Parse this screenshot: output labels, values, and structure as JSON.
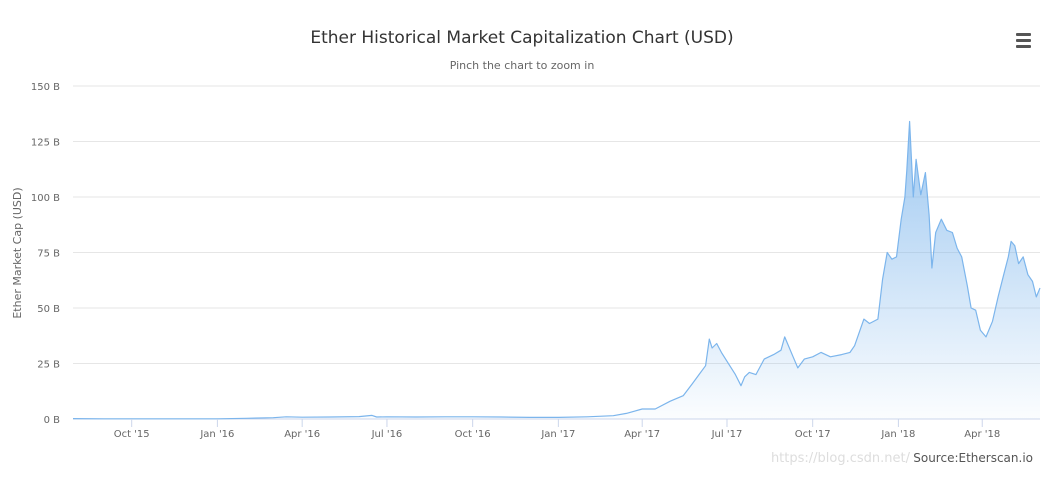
{
  "chart_data": {
    "type": "area",
    "title": "Ether Historical Market Capitalization Chart (USD)",
    "subtitle": "Pinch the chart to zoom in",
    "ylabel": "Ether Market Cap (USD)",
    "xlabel": "",
    "credits": "Source:Etherscan.io",
    "watermark": "https://blog.csdn.net/",
    "ylim": [
      0,
      150
    ],
    "yticks": [
      0,
      25,
      50,
      75,
      100,
      125,
      150
    ],
    "ytick_labels": [
      "0 B",
      "25 B",
      "50 B",
      "75 B",
      "100 B",
      "125 B",
      "150 B"
    ],
    "xlim": [
      "2015-07-30",
      "2018-06-02"
    ],
    "xtick_dates": [
      "2015-10-01",
      "2016-01-01",
      "2016-04-01",
      "2016-07-01",
      "2016-10-01",
      "2017-01-01",
      "2017-04-01",
      "2017-07-01",
      "2017-10-01",
      "2018-01-01",
      "2018-04-01"
    ],
    "xtick_labels": [
      "Oct '15",
      "Jan '16",
      "Apr '16",
      "Jul '16",
      "Oct '16",
      "Jan '17",
      "Apr '17",
      "Jul '17",
      "Oct '17",
      "Jan '18",
      "Apr '18"
    ],
    "grid": true,
    "line_color": "#7cb5ec",
    "series": [
      {
        "x": [
          "2015-07-30",
          "2015-09-01",
          "2015-10-15",
          "2015-12-01",
          "2016-01-01",
          "2016-02-01",
          "2016-03-01",
          "2016-03-15",
          "2016-04-01",
          "2016-05-01",
          "2016-06-01",
          "2016-06-15",
          "2016-06-20",
          "2016-07-01",
          "2016-08-01",
          "2016-09-01",
          "2016-10-01",
          "2016-11-01",
          "2016-12-01",
          "2017-01-01",
          "2017-02-01",
          "2017-03-01",
          "2017-03-15",
          "2017-04-01",
          "2017-04-15",
          "2017-05-01",
          "2017-05-15",
          "2017-05-25",
          "2017-06-01",
          "2017-06-08",
          "2017-06-12",
          "2017-06-15",
          "2017-06-20",
          "2017-06-25",
          "2017-07-01",
          "2017-07-10",
          "2017-07-16",
          "2017-07-20",
          "2017-07-25",
          "2017-08-01",
          "2017-08-10",
          "2017-08-20",
          "2017-08-28",
          "2017-09-01",
          "2017-09-10",
          "2017-09-15",
          "2017-09-22",
          "2017-10-01",
          "2017-10-10",
          "2017-10-20",
          "2017-11-01",
          "2017-11-10",
          "2017-11-15",
          "2017-11-25",
          "2017-12-01",
          "2017-12-10",
          "2017-12-15",
          "2017-12-20",
          "2017-12-25",
          "2017-12-30",
          "2018-01-04",
          "2018-01-08",
          "2018-01-10",
          "2018-01-13",
          "2018-01-17",
          "2018-01-20",
          "2018-01-25",
          "2018-01-30",
          "2018-02-03",
          "2018-02-06",
          "2018-02-10",
          "2018-02-16",
          "2018-02-22",
          "2018-02-28",
          "2018-03-05",
          "2018-03-10",
          "2018-03-16",
          "2018-03-20",
          "2018-03-25",
          "2018-03-30",
          "2018-04-05",
          "2018-04-12",
          "2018-04-18",
          "2018-04-24",
          "2018-04-29",
          "2018-05-02",
          "2018-05-06",
          "2018-05-10",
          "2018-05-15",
          "2018-05-20",
          "2018-05-25",
          "2018-05-29",
          "2018-06-02"
        ],
        "values": [
          0.2,
          0.1,
          0.1,
          0.1,
          0.1,
          0.3,
          0.6,
          1.0,
          0.8,
          0.9,
          1.1,
          1.6,
          0.9,
          1.0,
          0.9,
          1.0,
          1.0,
          0.9,
          0.7,
          0.7,
          1.0,
          1.5,
          2.5,
          4.5,
          4.5,
          8.0,
          10.5,
          16.0,
          20.0,
          24.0,
          36.0,
          32.0,
          34.0,
          30.0,
          26.0,
          20.0,
          15.0,
          19.0,
          21.0,
          20.0,
          27.0,
          29.0,
          31.0,
          37.0,
          28.0,
          23.0,
          27.0,
          28.0,
          30.0,
          28.0,
          29.0,
          30.0,
          33.0,
          45.0,
          43.0,
          45.0,
          63.0,
          75.0,
          72.0,
          73.0,
          90.0,
          100.0,
          112.0,
          134.0,
          100.0,
          117.0,
          101.0,
          111.0,
          92.0,
          68.0,
          84.0,
          90.0,
          85.0,
          84.0,
          77.0,
          73.0,
          60.0,
          50.0,
          49.0,
          40.0,
          37.0,
          44.0,
          55.0,
          65.0,
          73.0,
          80.0,
          78.0,
          70.0,
          73.0,
          65.0,
          62.0,
          55.0,
          59.0
        ]
      }
    ]
  }
}
